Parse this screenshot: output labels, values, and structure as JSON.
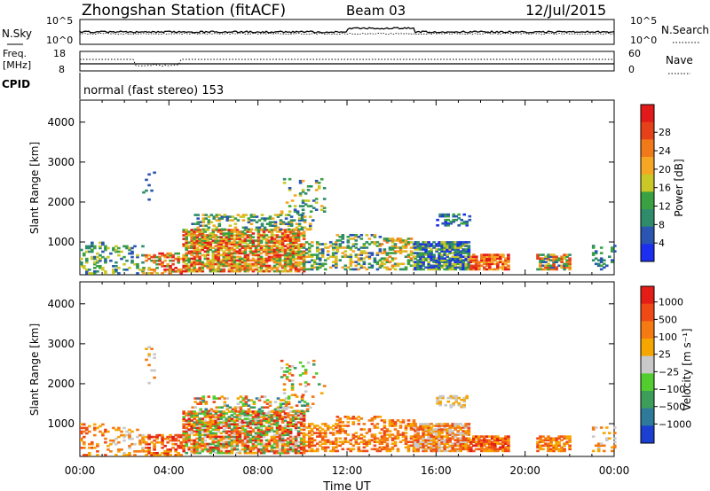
{
  "header": {
    "station": "Zhongshan Station (fitACF)",
    "beam": "Beam 03",
    "date": "12/Jul/2015"
  },
  "panels": {
    "nsky": {
      "label": "N.Sky",
      "right_label": "N.Search",
      "left_ticks": [
        "10^5",
        "10^0"
      ],
      "right_ticks": [
        "10^5",
        "10^0"
      ]
    },
    "freq": {
      "label_line1": "Freq.",
      "label_line2": "[MHz]",
      "right_label": "Nave",
      "left_ticks": [
        "18",
        "8"
      ],
      "right_ticks": [
        "60",
        "0"
      ]
    },
    "cpid": {
      "label": "CPID",
      "value": "normal (fast stereo) 153"
    }
  },
  "chart_data": [
    {
      "type": "heatmap",
      "name": "power",
      "ylabel": "Slant Range [km]",
      "xlabel": "Time UT",
      "ylim": [
        180,
        4550
      ],
      "yticks": [
        1000,
        2000,
        3000,
        4000
      ],
      "xticks": [
        "00:00",
        "04:00",
        "08:00",
        "12:00",
        "16:00",
        "20:00",
        "00:00"
      ],
      "colorbar": {
        "label": "Power [dB]",
        "ticks": [
          "4",
          "8",
          "12",
          "16",
          "20",
          "24",
          "28"
        ],
        "colors": [
          "#1c2ef0",
          "#2a55b0",
          "#2e8c6a",
          "#3aa142",
          "#c9c826",
          "#f5a623",
          "#f07a1a",
          "#e6421a",
          "#e31a1a"
        ]
      }
    },
    {
      "type": "heatmap",
      "name": "velocity",
      "ylabel": "Slant Range [km]",
      "xlabel": "Time UT",
      "ylim": [
        180,
        4550
      ],
      "yticks": [
        1000,
        2000,
        3000,
        4000
      ],
      "xticks": [
        "00:00",
        "04:00",
        "08:00",
        "12:00",
        "16:00",
        "20:00",
        "00:00"
      ],
      "colorbar": {
        "label": "Velocity [m s⁻¹]",
        "ticks": [
          "1000",
          "500",
          "100",
          "25",
          "−25",
          "−100",
          "−500",
          "−1000"
        ],
        "colors": [
          "#1a3fd1",
          "#2e7a9a",
          "#3c9e5a",
          "#52cc2e",
          "#c9c9c9",
          "#f6a600",
          "#f57a12",
          "#ee4a18",
          "#e41e16"
        ]
      }
    }
  ]
}
